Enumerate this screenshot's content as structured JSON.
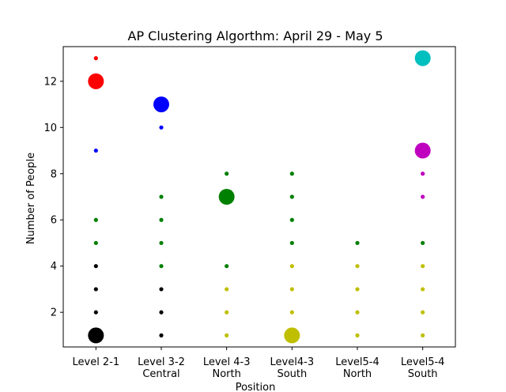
{
  "chart_data": {
    "type": "scatter",
    "title": "AP Clustering Algorthm: April 29 - May 5",
    "xlabel": "Position",
    "ylabel": "Number of People",
    "categories": [
      [
        "Level 2-1"
      ],
      [
        "Level 3-2",
        "Central"
      ],
      [
        "Level 4-3",
        "North"
      ],
      [
        "Level4-3",
        "South"
      ],
      [
        "Level5-4",
        "North"
      ],
      [
        "Level5-4",
        "South"
      ]
    ],
    "xlim": [
      -0.5,
      5.5
    ],
    "ylim": [
      0.5,
      13.5
    ],
    "yticks": [
      2,
      4,
      6,
      8,
      10,
      12
    ],
    "grid": false,
    "colors": {
      "red": "#ff0000",
      "blue": "#0000ff",
      "green": "#008000",
      "black": "#000000",
      "yellow": "#bfbf00",
      "cyan": "#00bfbf",
      "magenta": "#bf00bf"
    },
    "points": [
      {
        "x": 0,
        "y": 13,
        "color": "red",
        "size": "small"
      },
      {
        "x": 0,
        "y": 12,
        "color": "red",
        "size": "large"
      },
      {
        "x": 0,
        "y": 9,
        "color": "blue",
        "size": "small"
      },
      {
        "x": 0,
        "y": 6,
        "color": "green",
        "size": "small"
      },
      {
        "x": 0,
        "y": 5,
        "color": "green",
        "size": "small"
      },
      {
        "x": 0,
        "y": 4,
        "color": "black",
        "size": "small"
      },
      {
        "x": 0,
        "y": 3,
        "color": "black",
        "size": "small"
      },
      {
        "x": 0,
        "y": 2,
        "color": "black",
        "size": "small"
      },
      {
        "x": 0,
        "y": 1,
        "color": "black",
        "size": "large"
      },
      {
        "x": 1,
        "y": 11,
        "color": "blue",
        "size": "large"
      },
      {
        "x": 1,
        "y": 10,
        "color": "blue",
        "size": "small"
      },
      {
        "x": 1,
        "y": 7,
        "color": "green",
        "size": "small"
      },
      {
        "x": 1,
        "y": 6,
        "color": "green",
        "size": "small"
      },
      {
        "x": 1,
        "y": 5,
        "color": "green",
        "size": "small"
      },
      {
        "x": 1,
        "y": 4,
        "color": "green",
        "size": "small"
      },
      {
        "x": 1,
        "y": 3,
        "color": "black",
        "size": "small"
      },
      {
        "x": 1,
        "y": 2,
        "color": "black",
        "size": "small"
      },
      {
        "x": 1,
        "y": 1,
        "color": "black",
        "size": "small"
      },
      {
        "x": 2,
        "y": 8,
        "color": "green",
        "size": "small"
      },
      {
        "x": 2,
        "y": 7,
        "color": "green",
        "size": "large"
      },
      {
        "x": 2,
        "y": 4,
        "color": "green",
        "size": "small"
      },
      {
        "x": 2,
        "y": 3,
        "color": "yellow",
        "size": "small"
      },
      {
        "x": 2,
        "y": 2,
        "color": "yellow",
        "size": "small"
      },
      {
        "x": 2,
        "y": 1,
        "color": "yellow",
        "size": "small"
      },
      {
        "x": 3,
        "y": 8,
        "color": "green",
        "size": "small"
      },
      {
        "x": 3,
        "y": 7,
        "color": "green",
        "size": "small"
      },
      {
        "x": 3,
        "y": 6,
        "color": "green",
        "size": "small"
      },
      {
        "x": 3,
        "y": 5,
        "color": "green",
        "size": "small"
      },
      {
        "x": 3,
        "y": 4,
        "color": "yellow",
        "size": "small"
      },
      {
        "x": 3,
        "y": 3,
        "color": "yellow",
        "size": "small"
      },
      {
        "x": 3,
        "y": 2,
        "color": "yellow",
        "size": "small"
      },
      {
        "x": 3,
        "y": 1,
        "color": "yellow",
        "size": "large"
      },
      {
        "x": 4,
        "y": 5,
        "color": "green",
        "size": "small"
      },
      {
        "x": 4,
        "y": 4,
        "color": "yellow",
        "size": "small"
      },
      {
        "x": 4,
        "y": 3,
        "color": "yellow",
        "size": "small"
      },
      {
        "x": 4,
        "y": 2,
        "color": "yellow",
        "size": "small"
      },
      {
        "x": 4,
        "y": 1,
        "color": "yellow",
        "size": "small"
      },
      {
        "x": 5,
        "y": 13,
        "color": "cyan",
        "size": "large"
      },
      {
        "x": 5,
        "y": 9,
        "color": "magenta",
        "size": "large"
      },
      {
        "x": 5,
        "y": 8,
        "color": "magenta",
        "size": "small"
      },
      {
        "x": 5,
        "y": 7,
        "color": "magenta",
        "size": "small"
      },
      {
        "x": 5,
        "y": 5,
        "color": "green",
        "size": "small"
      },
      {
        "x": 5,
        "y": 4,
        "color": "yellow",
        "size": "small"
      },
      {
        "x": 5,
        "y": 3,
        "color": "yellow",
        "size": "small"
      },
      {
        "x": 5,
        "y": 2,
        "color": "yellow",
        "size": "small"
      },
      {
        "x": 5,
        "y": 1,
        "color": "yellow",
        "size": "small"
      }
    ]
  }
}
